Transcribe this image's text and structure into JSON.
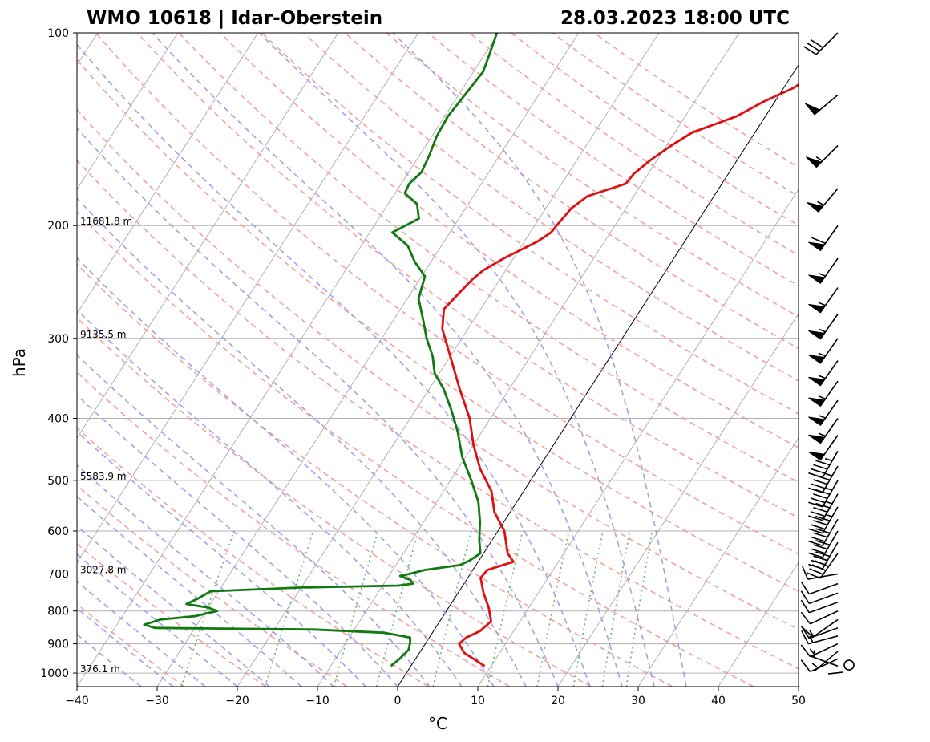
{
  "header": {
    "station": "WMO 10618 | Idar-Oberstein",
    "datetime": "28.03.2023 18:00 UTC"
  },
  "chart_data": {
    "type": "line",
    "title": "WMO 10618 | Idar-Oberstein",
    "subtitle": "28.03.2023 18:00 UTC",
    "xlabel": "°C",
    "ylabel": "hPa",
    "xlim": [
      -40,
      50
    ],
    "ylim": [
      1050,
      100
    ],
    "y_scale": "log",
    "x_ticks": [
      "−40",
      "−30",
      "−20",
      "−10",
      "0",
      "10",
      "20",
      "30",
      "40",
      "50"
    ],
    "y_ticks": [
      "100",
      "200",
      "300",
      "400",
      "500",
      "600",
      "700",
      "800",
      "900",
      "1000"
    ],
    "y_tick_values": [
      100,
      200,
      300,
      400,
      500,
      600,
      700,
      800,
      900,
      1000
    ],
    "grid": true,
    "skew": true,
    "height_labels": [
      {
        "p": 200,
        "text": "11681.8 m"
      },
      {
        "p": 300,
        "text": "9135.5 m"
      },
      {
        "p": 500,
        "text": "5583.9 m"
      },
      {
        "p": 700,
        "text": "3027.8 m"
      },
      {
        "p": 1000,
        "text": "376.1 m"
      }
    ],
    "colors": {
      "temperature": "#e01010",
      "dewpoint": "#107a10",
      "dry_adiabat": "#f4a0a0",
      "moist_adiabat": "#a0a0f0",
      "mixing_ratio": "#6ab86a",
      "isotherm": "#a0a0a0",
      "isobar": "#b0b0b0"
    },
    "series": [
      {
        "key": "temperature",
        "color": "#e01010",
        "points": [
          [
            975,
            9.2
          ],
          [
            930,
            5.6
          ],
          [
            900,
            4.2
          ],
          [
            880,
            4.6
          ],
          [
            860,
            5.8
          ],
          [
            830,
            6.4
          ],
          [
            790,
            5.0
          ],
          [
            750,
            3.2
          ],
          [
            710,
            1.6
          ],
          [
            690,
            1.8
          ],
          [
            670,
            4.4
          ],
          [
            650,
            3.0
          ],
          [
            600,
            0.8
          ],
          [
            560,
            -2.0
          ],
          [
            520,
            -4.0
          ],
          [
            480,
            -7.2
          ],
          [
            440,
            -10.0
          ],
          [
            400,
            -12.6
          ],
          [
            360,
            -16.2
          ],
          [
            320,
            -20.0
          ],
          [
            290,
            -23.2
          ],
          [
            270,
            -24.6
          ],
          [
            255,
            -24.0
          ],
          [
            242,
            -23.4
          ],
          [
            235,
            -22.8
          ],
          [
            225,
            -21.2
          ],
          [
            212,
            -18.4
          ],
          [
            205,
            -17.4
          ],
          [
            198,
            -17.2
          ],
          [
            188,
            -16.8
          ],
          [
            180,
            -15.8
          ],
          [
            172,
            -12.0
          ],
          [
            166,
            -11.8
          ],
          [
            158,
            -10.8
          ],
          [
            150,
            -9.4
          ],
          [
            143,
            -7.8
          ],
          [
            135,
            -3.6
          ],
          [
            128,
            -1.4
          ],
          [
            122,
            1.2
          ],
          [
            116,
            2.8
          ],
          [
            110,
            4.2
          ],
          [
            105,
            5.2
          ],
          [
            100,
            5.8
          ]
        ]
      },
      {
        "key": "dewpoint",
        "color": "#107a10",
        "points": [
          [
            975,
            -2.5
          ],
          [
            950,
            -2.0
          ],
          [
            920,
            -1.6
          ],
          [
            895,
            -2.0
          ],
          [
            880,
            -2.4
          ],
          [
            865,
            -6.0
          ],
          [
            855,
            -15.0
          ],
          [
            850,
            -35.0
          ],
          [
            840,
            -36.6
          ],
          [
            825,
            -35.0
          ],
          [
            815,
            -31.0
          ],
          [
            800,
            -28.6
          ],
          [
            790,
            -30.0
          ],
          [
            780,
            -33.0
          ],
          [
            765,
            -32.0
          ],
          [
            745,
            -31.0
          ],
          [
            735,
            -20.0
          ],
          [
            730,
            -8.0
          ],
          [
            725,
            -6.4
          ],
          [
            715,
            -7.0
          ],
          [
            705,
            -8.6
          ],
          [
            700,
            -7.6
          ],
          [
            690,
            -6.0
          ],
          [
            678,
            -2.0
          ],
          [
            668,
            -1.2
          ],
          [
            650,
            -0.4
          ],
          [
            620,
            -1.6
          ],
          [
            580,
            -3.0
          ],
          [
            540,
            -4.8
          ],
          [
            500,
            -7.4
          ],
          [
            460,
            -10.4
          ],
          [
            420,
            -13.0
          ],
          [
            390,
            -15.4
          ],
          [
            360,
            -18.2
          ],
          [
            340,
            -20.6
          ],
          [
            320,
            -22.2
          ],
          [
            300,
            -24.4
          ],
          [
            280,
            -26.4
          ],
          [
            260,
            -28.6
          ],
          [
            240,
            -29.6
          ],
          [
            228,
            -32.0
          ],
          [
            215,
            -34.2
          ],
          [
            205,
            -37.2
          ],
          [
            195,
            -35.0
          ],
          [
            185,
            -36.4
          ],
          [
            178,
            -38.8
          ],
          [
            172,
            -39.0
          ],
          [
            165,
            -38.4
          ],
          [
            155,
            -38.8
          ],
          [
            145,
            -39.4
          ],
          [
            135,
            -39.6
          ],
          [
            125,
            -39.2
          ],
          [
            115,
            -38.8
          ],
          [
            108,
            -39.4
          ],
          [
            100,
            -40.2
          ]
        ]
      }
    ],
    "wind_barbs": [
      {
        "p": 1000,
        "speed": 0
      },
      {
        "p": 975,
        "dir": 290,
        "speed": 5
      },
      {
        "p": 950,
        "dir": 245,
        "speed": 10
      },
      {
        "p": 925,
        "dir": 230,
        "speed": 5
      },
      {
        "p": 900,
        "dir": 245,
        "speed": 15
      },
      {
        "p": 875,
        "dir": 255,
        "speed": 15
      },
      {
        "p": 850,
        "dir": 250,
        "speed": 15
      },
      {
        "p": 825,
        "dir": 235,
        "speed": 10
      },
      {
        "p": 800,
        "dir": 245,
        "speed": 10
      },
      {
        "p": 775,
        "dir": 250,
        "speed": 10
      },
      {
        "p": 750,
        "dir": 250,
        "speed": 10
      },
      {
        "p": 725,
        "dir": 250,
        "speed": 10
      },
      {
        "p": 700,
        "dir": 260,
        "speed": 10
      },
      {
        "p": 650,
        "dir": 215,
        "speed": 40
      },
      {
        "p": 625,
        "dir": 210,
        "speed": 40
      },
      {
        "p": 600,
        "dir": 210,
        "speed": 40
      },
      {
        "p": 575,
        "dir": 210,
        "speed": 40
      },
      {
        "p": 550,
        "dir": 210,
        "speed": 45
      },
      {
        "p": 525,
        "dir": 210,
        "speed": 45
      },
      {
        "p": 500,
        "dir": 210,
        "speed": 45
      },
      {
        "p": 475,
        "dir": 210,
        "speed": 45
      },
      {
        "p": 450,
        "dir": 210,
        "speed": 45
      },
      {
        "p": 425,
        "dir": 215,
        "speed": 50
      },
      {
        "p": 400,
        "dir": 215,
        "speed": 55
      },
      {
        "p": 375,
        "dir": 215,
        "speed": 55
      },
      {
        "p": 350,
        "dir": 215,
        "speed": 55
      },
      {
        "p": 325,
        "dir": 215,
        "speed": 55
      },
      {
        "p": 300,
        "dir": 215,
        "speed": 55
      },
      {
        "p": 275,
        "dir": 215,
        "speed": 55
      },
      {
        "p": 250,
        "dir": 215,
        "speed": 55
      },
      {
        "p": 225,
        "dir": 215,
        "speed": 55
      },
      {
        "p": 200,
        "dir": 215,
        "speed": 60
      },
      {
        "p": 175,
        "dir": 220,
        "speed": 55
      },
      {
        "p": 150,
        "dir": 225,
        "speed": 55
      },
      {
        "p": 125,
        "dir": 230,
        "speed": 50
      },
      {
        "p": 100,
        "dir": 225,
        "speed": 30
      }
    ]
  }
}
